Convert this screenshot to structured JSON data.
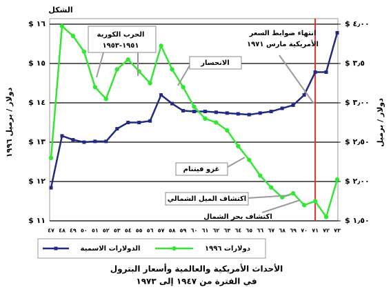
{
  "chart_data": {
    "type": "line",
    "title": "الشكل",
    "categories": [
      "٤٧",
      "٤٨",
      "٤٩",
      "٥٠",
      "٥١",
      "٥٢",
      "٥٣",
      "٥٤",
      "٥٥",
      "٥٦",
      "٥٧",
      "٥٨",
      "٥٩",
      "٦٠",
      "٦١",
      "٦٢",
      "٦٣",
      "٦٤",
      "٦٥",
      "٦٦",
      "٦٧",
      "٦٨",
      "٦٩",
      "٧٠",
      "٧١",
      "٧٢",
      "٧٣"
    ],
    "series": [
      {
        "name": "الدولارات الاسمية",
        "color": "#1f2a80",
        "marker": "square",
        "axis": "y2",
        "values": [
          1.92,
          2.58,
          2.53,
          2.5,
          2.51,
          2.51,
          2.67,
          2.75,
          2.75,
          2.77,
          3.1,
          2.99,
          2.9,
          2.89,
          2.89,
          2.88,
          2.87,
          2.86,
          2.85,
          2.87,
          2.89,
          2.93,
          2.97,
          3.1,
          3.39,
          3.39,
          3.89
        ]
      },
      {
        "name": "دولارات ١٩٩٦",
        "color": "#33e633",
        "marker": "circle",
        "values": [
          12.6,
          15.95,
          15.7,
          15.3,
          14.4,
          14.1,
          14.85,
          15.1,
          14.8,
          14.5,
          15.45,
          14.85,
          14.4,
          13.9,
          13.6,
          13.5,
          13.3,
          12.9,
          12.55,
          12.15,
          11.85,
          11.6,
          11.7,
          11.4,
          11.5,
          11.1,
          12.05
        ]
      }
    ],
    "ylim": [
      11,
      16
    ],
    "yticks": [
      {
        "value": 11,
        "label": "$ ١١"
      },
      {
        "value": 12,
        "label": "$ ١٢"
      },
      {
        "value": 13,
        "label": "$ ١٣"
      },
      {
        "value": 14,
        "label": "$ ١٤"
      },
      {
        "value": 15,
        "label": "$ ١٥"
      },
      {
        "value": 16,
        "label": "$ ١٦"
      }
    ],
    "y2lim": [
      1.5,
      4.0
    ],
    "y2ticks": [
      {
        "value": 1.5,
        "label": "$ ١٫٥٠"
      },
      {
        "value": 2.0,
        "label": "$ ٢٫٠٠"
      },
      {
        "value": 2.5,
        "label": "$ ٢٫٥٠"
      },
      {
        "value": 3.0,
        "label": "$ ٣٫٠٠"
      },
      {
        "value": 3.5,
        "label": "$ ٣٫٥"
      },
      {
        "value": 4.0,
        "label": "$ ٤٫٠٠"
      }
    ],
    "ylabel": "دولار / برميل ١٩٩٦",
    "y2label": "دولار / برميل",
    "grid": true,
    "vline": {
      "category_index": 24,
      "color": "#e03030"
    },
    "annotations": [
      {
        "lines": [
          "الحرب الكورية",
          "١٩٥١-١٩٥٣"
        ]
      },
      {
        "lines": [
          "الانحسار"
        ]
      },
      {
        "lines": [
          "انتهاء ضوابط السعر",
          "الأمريكية مارس ١٩٧١"
        ]
      },
      {
        "lines": [
          "غزو فيتنام"
        ]
      },
      {
        "lines": [
          "اكتشاف الميل الشمالي"
        ]
      },
      {
        "lines": [
          "اكتشاف بحر الشمال"
        ]
      }
    ],
    "caption": [
      "الأحداث الأمريكية والعالمية وأسعار البترول",
      "في الفترة من ١٩٤٧ إلى ١٩٧٣"
    ]
  }
}
